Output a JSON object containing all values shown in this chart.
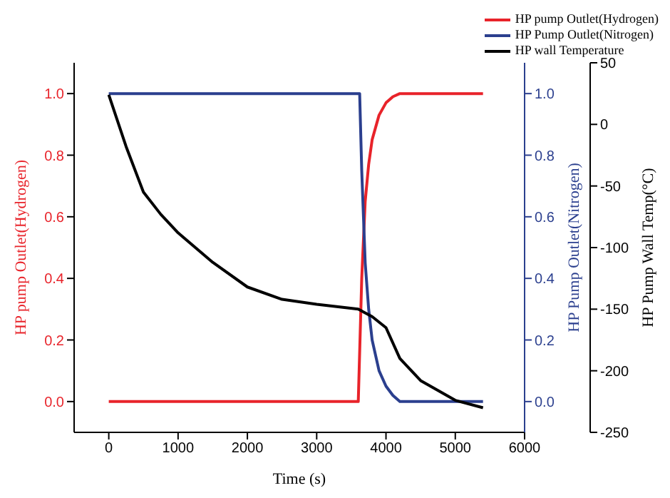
{
  "chart_data": {
    "type": "line",
    "xlabel": "Time (s)",
    "ylabel": "HP pump Outlet(Hydrogen)",
    "y2label": "HP Pump Outlet(Nitrogen)",
    "y3label": "HP Pump Wall Temp(°C)",
    "xlim": [
      -500,
      6000
    ],
    "xticks": [
      0,
      1000,
      2000,
      3000,
      4000,
      5000,
      6000
    ],
    "ylim": [
      -0.1,
      1.1
    ],
    "yticks": [
      {
        "value": 0,
        "label": "0.0"
      },
      0.2,
      0.4,
      0.6,
      0.8,
      {
        "value": 1,
        "label": "1.0"
      }
    ],
    "y2lim": [
      -0.1,
      1.1
    ],
    "y2ticks": [
      {
        "value": 0,
        "label": "0.0"
      },
      0.2,
      0.4,
      0.6,
      0.8,
      {
        "value": 1,
        "label": "1.0"
      }
    ],
    "y3lim": [
      -250,
      50
    ],
    "y3ticks": [
      -250,
      -200,
      -150,
      -100,
      -50,
      0,
      50
    ],
    "legend": "top right",
    "marker": "none",
    "line_style": "solid",
    "series": [
      {
        "name": "HP pump Outlet(Hydrogen)",
        "color": "#e8232a",
        "x": [
          0,
          3600,
          3650,
          3700,
          3750,
          3800,
          3900,
          4000,
          4100,
          4200,
          5400
        ],
        "values": [
          0,
          0,
          0.4,
          0.65,
          0.77,
          0.85,
          0.93,
          0.97,
          0.99,
          1,
          1
        ]
      },
      {
        "name": "HP Pump Outlet(Nitrogen)",
        "color": "#2b3f8e",
        "axis": "y2",
        "x": [
          0,
          3620,
          3650,
          3700,
          3750,
          3800,
          3900,
          4000,
          4100,
          4200,
          5400
        ],
        "values": [
          1,
          1,
          0.75,
          0.45,
          0.3,
          0.2,
          0.1,
          0.05,
          0.02,
          0,
          0
        ]
      },
      {
        "name": "HP wall Temperature",
        "color": "#000000",
        "axis": "y3",
        "x": [
          0,
          250,
          500,
          750,
          1000,
          1500,
          2000,
          2500,
          3000,
          3600,
          3800,
          4000,
          4200,
          4500,
          5000,
          5400
        ],
        "values": [
          24,
          -18,
          -55,
          -73,
          -88,
          -112,
          -132,
          -142,
          -146,
          -150,
          -156,
          -165,
          -190,
          -208,
          -224,
          -230
        ]
      }
    ]
  }
}
